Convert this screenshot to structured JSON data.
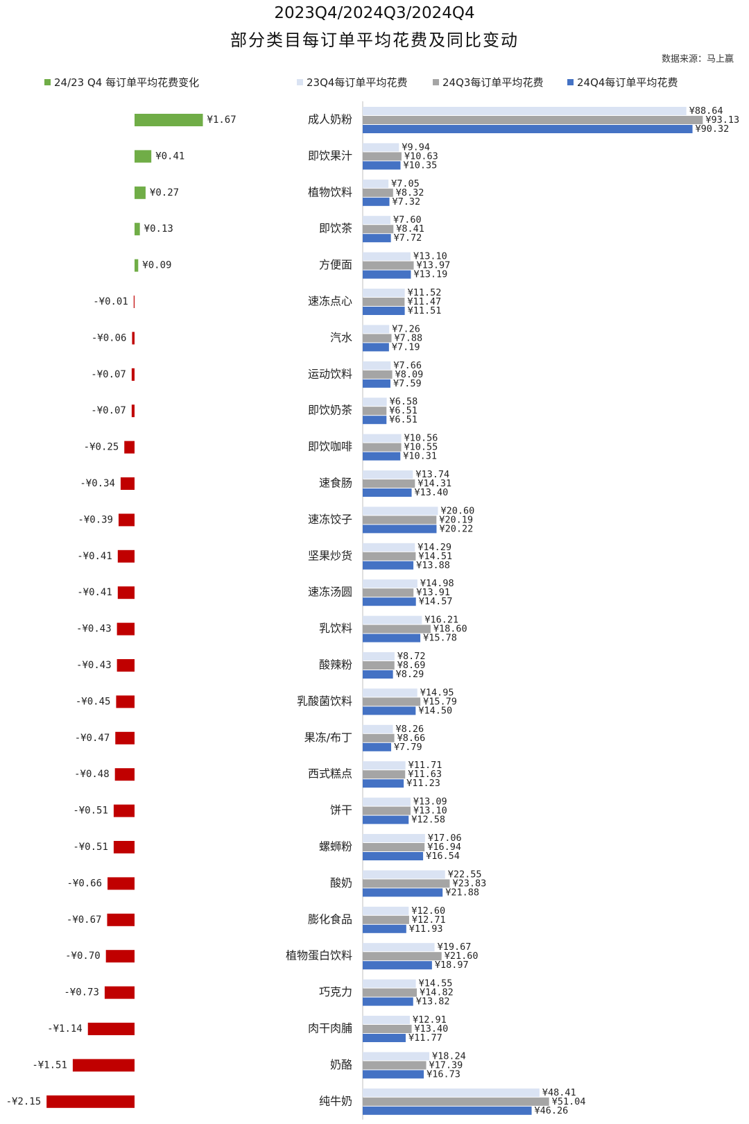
{
  "title_line1": "2023Q4/2024Q3/2024Q4",
  "title_line2": "部分类目每订单平均花费及同比变动",
  "source": "数据来源：马上赢",
  "legend": [
    {
      "label": "24/23 Q4 每订单平均花费变化",
      "color": "#70ad47"
    },
    {
      "label": "23Q4每订单平均花费",
      "color": "#dae3f3"
    },
    {
      "label": "24Q3每订单平均花费",
      "color": "#a5a5a5"
    },
    {
      "label": "24Q4每订单平均花费",
      "color": "#4472c4"
    }
  ],
  "colors": {
    "positive_change": "#70ad47",
    "negative_change": "#c00000",
    "q4_2023": "#dae3f3",
    "q3_2024": "#a5a5a5",
    "q4_2024": "#4472c4",
    "axis": "#bfbfbf"
  },
  "chart_data": [
    {
      "type": "bar",
      "orientation": "horizontal",
      "series_name": "24/23 Q4 每订单平均花费变化",
      "categories": [
        "成人奶粉",
        "即饮果汁",
        "植物饮料",
        "即饮茶",
        "方便面",
        "速冻点心",
        "汽水",
        "运动饮料",
        "即饮奶茶",
        "即饮咖啡",
        "速食肠",
        "速冻饺子",
        "坚果炒货",
        "速冻汤圆",
        "乳饮料",
        "酸辣粉",
        "乳酸菌饮料",
        "果冻/布丁",
        "西式糕点",
        "饼干",
        "螺蛳粉",
        "酸奶",
        "膨化食品",
        "植物蛋白饮料",
        "巧克力",
        "肉干肉脯",
        "奶酪",
        "纯牛奶"
      ],
      "values": [
        1.67,
        0.41,
        0.27,
        0.13,
        0.09,
        -0.01,
        -0.06,
        -0.07,
        -0.07,
        -0.25,
        -0.34,
        -0.39,
        -0.41,
        -0.41,
        -0.43,
        -0.43,
        -0.45,
        -0.47,
        -0.48,
        -0.51,
        -0.51,
        -0.66,
        -0.67,
        -0.7,
        -0.73,
        -1.14,
        -1.51,
        -2.15
      ],
      "labels": [
        "¥1.67",
        "¥0.41",
        "¥0.27",
        "¥0.13",
        "¥0.09",
        "-¥0.01",
        "-¥0.06",
        "-¥0.07",
        "-¥0.07",
        "-¥0.25",
        "-¥0.34",
        "-¥0.39",
        "-¥0.41",
        "-¥0.41",
        "-¥0.43",
        "-¥0.43",
        "-¥0.45",
        "-¥0.47",
        "-¥0.48",
        "-¥0.51",
        "-¥0.51",
        "-¥0.66",
        "-¥0.67",
        "-¥0.70",
        "-¥0.73",
        "-¥1.14",
        "-¥1.51",
        "-¥2.15"
      ]
    },
    {
      "type": "bar",
      "orientation": "horizontal",
      "categories": [
        "成人奶粉",
        "即饮果汁",
        "植物饮料",
        "即饮茶",
        "方便面",
        "速冻点心",
        "汽水",
        "运动饮料",
        "即饮奶茶",
        "即饮咖啡",
        "速食肠",
        "速冻饺子",
        "坚果炒货",
        "速冻汤圆",
        "乳饮料",
        "酸辣粉",
        "乳酸菌饮料",
        "果冻/布丁",
        "西式糕点",
        "饼干",
        "螺蛳粉",
        "酸奶",
        "膨化食品",
        "植物蛋白饮料",
        "巧克力",
        "肉干肉脯",
        "奶酪",
        "纯牛奶"
      ],
      "series": [
        {
          "name": "23Q4每订单平均花费",
          "values": [
            88.64,
            9.94,
            7.05,
            7.6,
            13.1,
            11.52,
            7.26,
            7.66,
            6.58,
            10.56,
            13.74,
            20.6,
            14.29,
            14.98,
            16.21,
            8.72,
            14.95,
            8.26,
            11.71,
            13.09,
            17.06,
            22.55,
            12.6,
            19.67,
            14.55,
            12.91,
            18.24,
            48.41
          ],
          "labels": [
            "¥88.64",
            "¥9.94",
            "¥7.05",
            "¥7.60",
            "¥13.10",
            "¥11.52",
            "¥7.26",
            "¥7.66",
            "¥6.58",
            "¥10.56",
            "¥13.74",
            "¥20.60",
            "¥14.29",
            "¥14.98",
            "¥16.21",
            "¥8.72",
            "¥14.95",
            "¥8.26",
            "¥11.71",
            "¥13.09",
            "¥17.06",
            "¥22.55",
            "¥12.60",
            "¥19.67",
            "¥14.55",
            "¥12.91",
            "¥18.24",
            "¥48.41"
          ]
        },
        {
          "name": "24Q3每订单平均花费",
          "values": [
            93.13,
            10.63,
            8.32,
            8.41,
            13.97,
            11.47,
            7.88,
            8.09,
            6.51,
            10.55,
            14.31,
            20.19,
            14.51,
            13.91,
            18.6,
            8.69,
            15.79,
            8.66,
            11.63,
            13.1,
            16.94,
            23.83,
            12.71,
            21.6,
            14.82,
            13.4,
            17.39,
            51.04
          ],
          "labels": [
            "¥93.13",
            "¥10.63",
            "¥8.32",
            "¥8.41",
            "¥13.97",
            "¥11.47",
            "¥7.88",
            "¥8.09",
            "¥6.51",
            "¥10.55",
            "¥14.31",
            "¥20.19",
            "¥14.51",
            "¥13.91",
            "¥18.60",
            "¥8.69",
            "¥15.79",
            "¥8.66",
            "¥11.63",
            "¥13.10",
            "¥16.94",
            "¥23.83",
            "¥12.71",
            "¥21.60",
            "¥14.82",
            "¥13.40",
            "¥17.39",
            "¥51.04"
          ]
        },
        {
          "name": "24Q4每订单平均花费",
          "values": [
            90.32,
            10.35,
            7.32,
            7.72,
            13.19,
            11.51,
            7.19,
            7.59,
            6.51,
            10.31,
            13.4,
            20.22,
            13.88,
            14.57,
            15.78,
            8.29,
            14.5,
            7.79,
            11.23,
            12.58,
            16.54,
            21.88,
            11.93,
            18.97,
            13.82,
            11.77,
            16.73,
            46.26
          ],
          "labels": [
            "¥90.32",
            "¥10.35",
            "¥7.32",
            "¥7.72",
            "¥13.19",
            "¥11.51",
            "¥7.19",
            "¥7.59",
            "¥6.51",
            "¥10.31",
            "¥13.40",
            "¥20.22",
            "¥13.88",
            "¥14.57",
            "¥15.78",
            "¥8.29",
            "¥14.50",
            "¥7.79",
            "¥11.23",
            "¥12.58",
            "¥16.54",
            "¥21.88",
            "¥11.93",
            "¥18.97",
            "¥13.82",
            "¥11.77",
            "¥16.73",
            "¥46.26"
          ]
        }
      ]
    }
  ]
}
